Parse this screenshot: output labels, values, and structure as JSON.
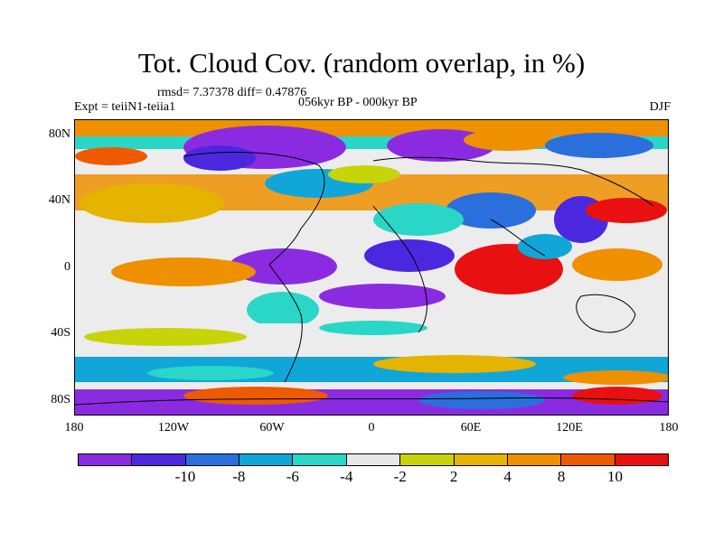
{
  "title": "Tot. Cloud Cov. (random overlap, in %)",
  "stats": "rmsd= 7.37378 diff= 0.47876",
  "experiment": "Expt = teiiN1-teiia1",
  "period": "056kyr BP - 000kyr BP",
  "season": "DJF",
  "y_ticks": [
    "80N",
    "40N",
    "0",
    "40S",
    "80S"
  ],
  "x_ticks": [
    "180",
    "120W",
    "60W",
    "0",
    "60E",
    "120E",
    "180"
  ],
  "colorbar": {
    "colors": [
      "#8a2be2",
      "#4b28e0",
      "#2a6fdb",
      "#11a6d8",
      "#2ad6c8",
      "#e8e8e8",
      "#c8d40a",
      "#e4b400",
      "#ee9000",
      "#ee5a00",
      "#e81010"
    ],
    "labels": [
      "-10",
      "-8",
      "-6",
      "-4",
      "-2",
      "2",
      "4",
      "8",
      "10"
    ]
  },
  "legend_values": {
    "min_label": "-10",
    "max_label": "10",
    "units": "%"
  }
}
